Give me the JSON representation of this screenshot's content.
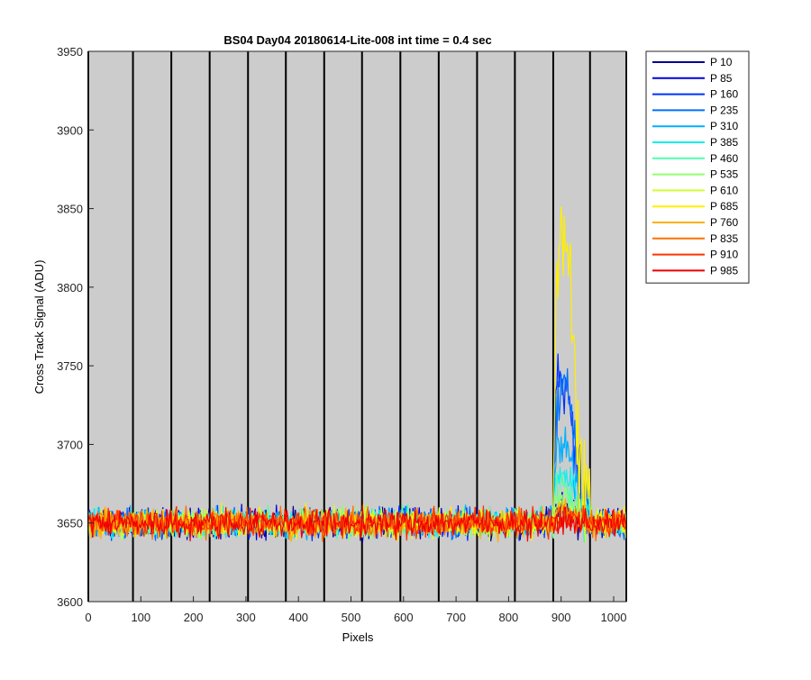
{
  "chart_data": {
    "type": "line",
    "title": "BS04 Day04 20180614-Lite-008 int time = 0.4 sec",
    "xlabel": "Pixels",
    "ylabel": "Cross Track Signal (ADU)",
    "xlim": [
      0,
      1024
    ],
    "ylim": [
      3600,
      3950
    ],
    "xticks": [
      0,
      100,
      200,
      300,
      400,
      500,
      600,
      700,
      800,
      900,
      1000
    ],
    "yticks": [
      3600,
      3650,
      3700,
      3750,
      3800,
      3850,
      3900,
      3950
    ],
    "grid": false,
    "background": "#cccccc",
    "vertical_markers": [
      0,
      85,
      158,
      231,
      304,
      376,
      449,
      521,
      594,
      667,
      740,
      812,
      885,
      955,
      1024
    ],
    "baseline_level": 3650,
    "baseline_noise_range": [
      3620,
      3678
    ],
    "legend_position": "outside-right",
    "series": [
      {
        "name": "P 10",
        "color": "#00008f",
        "peak_region": [
          885,
          955
        ],
        "peak_level": 3655
      },
      {
        "name": "P 85",
        "color": "#0000df",
        "peak_region": [
          885,
          955
        ],
        "peak_level": 3660
      },
      {
        "name": "P 160",
        "color": "#0030ff",
        "peak_region": [
          885,
          955
        ],
        "peak_level": 3745
      },
      {
        "name": "P 235",
        "color": "#0070ff",
        "peak_region": [
          885,
          955
        ],
        "peak_level": 3740
      },
      {
        "name": "P 310",
        "color": "#00afff",
        "peak_region": [
          885,
          955
        ],
        "peak_level": 3700
      },
      {
        "name": "P 385",
        "color": "#10efef",
        "peak_region": [
          885,
          955
        ],
        "peak_level": 3685
      },
      {
        "name": "P 460",
        "color": "#50ffaf",
        "peak_region": [
          885,
          955
        ],
        "peak_level": 3672
      },
      {
        "name": "P 535",
        "color": "#8fff70",
        "peak_region": [
          885,
          955
        ],
        "peak_level": 3665
      },
      {
        "name": "P 610",
        "color": "#cfff30",
        "peak_region": [
          885,
          955
        ],
        "peak_level": 3660
      },
      {
        "name": "P 685",
        "color": "#ffef00",
        "peak_region": [
          885,
          955
        ],
        "peak_level": 3840
      },
      {
        "name": "P 760",
        "color": "#ffaf00",
        "peak_region": [
          885,
          955
        ],
        "peak_level": 3658
      },
      {
        "name": "P 835",
        "color": "#ff7000",
        "peak_region": [
          885,
          955
        ],
        "peak_level": 3655
      },
      {
        "name": "P 910",
        "color": "#ff3000",
        "peak_region": [
          885,
          955
        ],
        "peak_level": 3652
      },
      {
        "name": "P 985",
        "color": "#ef0000",
        "peak_region": [
          885,
          955
        ],
        "peak_level": 3650
      }
    ]
  }
}
